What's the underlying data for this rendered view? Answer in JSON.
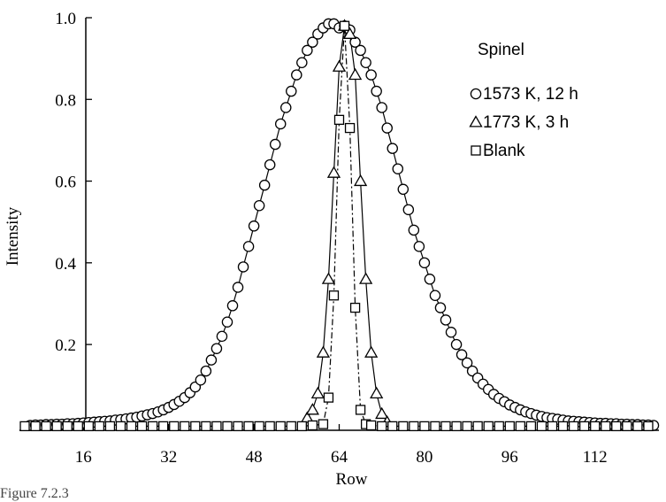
{
  "chart_data": {
    "type": "scatter",
    "title": "",
    "xlabel": "Row",
    "ylabel": "Intensity",
    "xlim": [
      4,
      124
    ],
    "ylim": [
      -0.01,
      1.0
    ],
    "xticks": [
      16,
      32,
      48,
      64,
      80,
      96,
      112
    ],
    "yticks": [
      0.2,
      0.4,
      0.6,
      0.8,
      1.0
    ],
    "ytick_labels": [
      "0.2",
      "0.4",
      "0.6",
      "0.8",
      "1.0"
    ],
    "grid": false,
    "legend_position": "top-right",
    "legend_title": "Spinel",
    "series": [
      {
        "name": "1573 K, 12 h",
        "marker": "circle",
        "line_style": "solid",
        "x": [
          6,
          7,
          8,
          9,
          10,
          11,
          12,
          13,
          14,
          15,
          16,
          17,
          18,
          19,
          20,
          21,
          22,
          23,
          24,
          25,
          26,
          27,
          28,
          29,
          30,
          31,
          32,
          33,
          34,
          35,
          36,
          37,
          38,
          39,
          40,
          41,
          42,
          43,
          44,
          45,
          46,
          47,
          48,
          49,
          50,
          51,
          52,
          53,
          54,
          55,
          56,
          57,
          58,
          59,
          60,
          61,
          62,
          63,
          64,
          65,
          66,
          67,
          68,
          69,
          70,
          71,
          72,
          73,
          74,
          75,
          76,
          77,
          78,
          79,
          80,
          81,
          82,
          83,
          84,
          85,
          86,
          87,
          88,
          89,
          90,
          91,
          92,
          93,
          94,
          95,
          96,
          97,
          98,
          99,
          100,
          101,
          102,
          103,
          104,
          105,
          106,
          107,
          108,
          109,
          110,
          111,
          112,
          113,
          114,
          115,
          116,
          117,
          118,
          119,
          120,
          121,
          122,
          123
        ],
        "y": [
          0.002,
          0.003,
          0.003,
          0.004,
          0.004,
          0.005,
          0.005,
          0.006,
          0.006,
          0.007,
          0.008,
          0.009,
          0.01,
          0.011,
          0.012,
          0.013,
          0.015,
          0.016,
          0.018,
          0.02,
          0.022,
          0.025,
          0.028,
          0.031,
          0.035,
          0.04,
          0.046,
          0.053,
          0.061,
          0.07,
          0.082,
          0.096,
          0.113,
          0.135,
          0.162,
          0.19,
          0.22,
          0.255,
          0.295,
          0.34,
          0.39,
          0.44,
          0.49,
          0.54,
          0.59,
          0.64,
          0.69,
          0.74,
          0.78,
          0.82,
          0.86,
          0.89,
          0.92,
          0.94,
          0.96,
          0.975,
          0.985,
          0.985,
          0.975,
          0.98,
          0.97,
          0.94,
          0.92,
          0.89,
          0.86,
          0.82,
          0.78,
          0.73,
          0.68,
          0.63,
          0.58,
          0.53,
          0.48,
          0.44,
          0.4,
          0.36,
          0.32,
          0.29,
          0.26,
          0.23,
          0.2,
          0.175,
          0.155,
          0.135,
          0.118,
          0.103,
          0.09,
          0.078,
          0.068,
          0.06,
          0.052,
          0.046,
          0.04,
          0.035,
          0.031,
          0.027,
          0.024,
          0.021,
          0.019,
          0.017,
          0.015,
          0.013,
          0.012,
          0.011,
          0.01,
          0.009,
          0.008,
          0.007,
          0.007,
          0.006,
          0.006,
          0.005,
          0.005,
          0.004,
          0.004,
          0.003,
          0.003,
          0.002
        ]
      },
      {
        "name": "1773 K, 3 h",
        "marker": "triangle",
        "line_style": "solid",
        "x": [
          58,
          59,
          60,
          61,
          62,
          63,
          64,
          65,
          66,
          67,
          68,
          69,
          70,
          71,
          72,
          73
        ],
        "y": [
          0.02,
          0.04,
          0.08,
          0.18,
          0.36,
          0.62,
          0.88,
          0.98,
          0.96,
          0.86,
          0.6,
          0.36,
          0.18,
          0.08,
          0.03,
          0.01
        ]
      },
      {
        "name": "Blank",
        "marker": "square",
        "line_style": "dash-dot",
        "x": [
          5,
          7,
          9,
          11,
          13,
          15,
          17,
          19,
          21,
          23,
          25,
          27,
          29,
          31,
          33,
          35,
          37,
          39,
          41,
          43,
          45,
          47,
          49,
          51,
          53,
          55,
          57,
          59,
          61,
          62,
          63,
          64,
          65,
          66,
          67,
          68,
          69,
          70,
          72,
          74,
          76,
          78,
          80,
          82,
          84,
          86,
          88,
          90,
          92,
          94,
          96,
          98,
          100,
          102,
          104,
          106,
          108,
          110,
          112,
          114,
          116,
          118,
          120,
          122
        ],
        "y": [
          0,
          0,
          0,
          0,
          0,
          0,
          0,
          0,
          0,
          0,
          0,
          0,
          0,
          0,
          0,
          0,
          0,
          0,
          0,
          0,
          0,
          0,
          0,
          0,
          0,
          0,
          0,
          0.002,
          0.005,
          0.07,
          0.32,
          0.75,
          0.98,
          0.73,
          0.29,
          0.04,
          0.005,
          0.002,
          0,
          0,
          0,
          0,
          0,
          0,
          0,
          0,
          0,
          0,
          0,
          0,
          0,
          0,
          0,
          0,
          0,
          0,
          0,
          0,
          0,
          0,
          0,
          0,
          0,
          0
        ]
      }
    ]
  },
  "caption": "Figure 7.2.3"
}
